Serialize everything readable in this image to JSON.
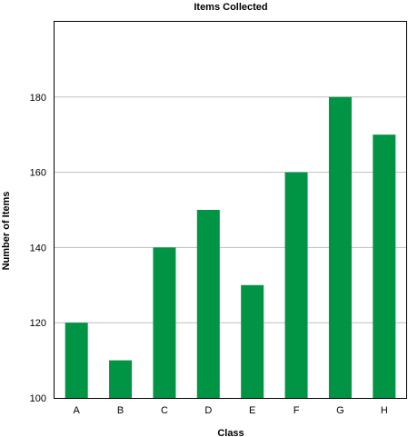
{
  "chart_data": {
    "type": "bar",
    "title": "Items Collected",
    "xlabel": "Class",
    "ylabel": "Number of Items",
    "categories": [
      "A",
      "B",
      "C",
      "D",
      "E",
      "F",
      "G",
      "H"
    ],
    "values": [
      120,
      110,
      140,
      150,
      130,
      160,
      180,
      170
    ],
    "ylim": [
      100,
      200
    ],
    "yticks": [
      100,
      120,
      140,
      160,
      180
    ],
    "grid": true,
    "legend": "none",
    "bar_color": "#009444",
    "grid_color": "#bfbfbf"
  }
}
